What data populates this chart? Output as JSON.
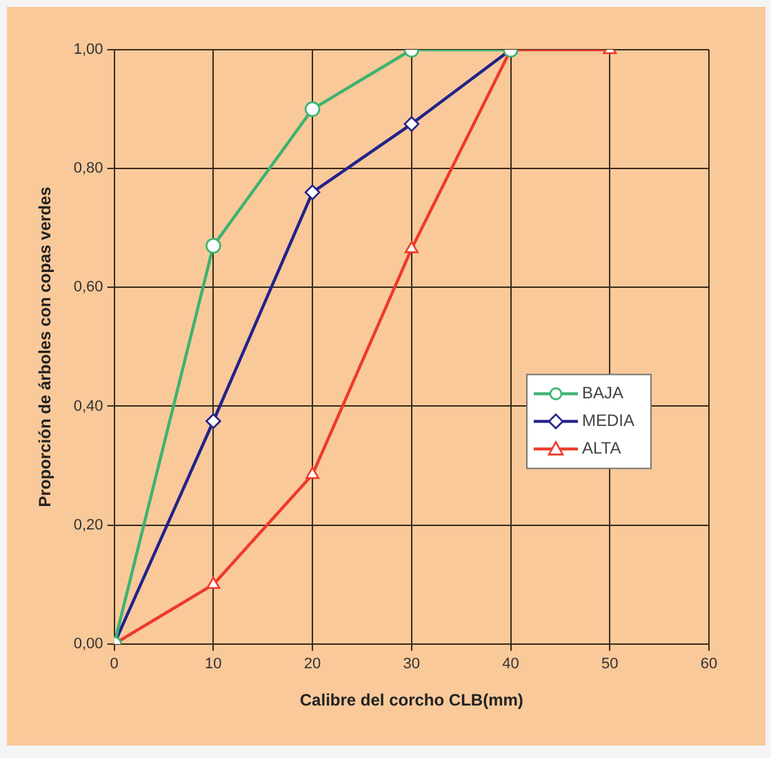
{
  "chart_data": {
    "type": "line",
    "xlabel": "Calibre del corcho CLB(mm)",
    "ylabel": "Proporción de árboles con copas verdes",
    "xlim": [
      0,
      60
    ],
    "xticks": [
      0,
      10,
      20,
      30,
      40,
      50,
      60
    ],
    "ylim": [
      0,
      1
    ],
    "yticks": [
      {
        "value": 0,
        "label": "0,00"
      },
      {
        "value": 0.2,
        "label": "0,20"
      },
      {
        "value": 0.4,
        "label": "0,40"
      },
      {
        "value": 0.6,
        "label": "0,60"
      },
      {
        "value": 0.8,
        "label": "0,80"
      },
      {
        "value": 1,
        "label": "1,00"
      }
    ],
    "grid": true,
    "legend": "right",
    "series": [
      {
        "name": "BAJA",
        "color": "#3cb371",
        "marker": "circle",
        "x": [
          0,
          10,
          20,
          30,
          40
        ],
        "values": [
          0,
          0.67,
          0.9,
          1,
          1
        ]
      },
      {
        "name": "MEDIA",
        "color": "#22228a",
        "marker": "diamond",
        "x": [
          0,
          10,
          20,
          30,
          40
        ],
        "values": [
          0,
          0.375,
          0.76,
          0.875,
          1
        ]
      },
      {
        "name": "ALTA",
        "color": "#ee3a2a",
        "marker": "triangle",
        "x": [
          0,
          10,
          20,
          30,
          40,
          50
        ],
        "values": [
          0,
          0.1,
          0.285,
          0.665,
          1,
          1
        ]
      }
    ]
  }
}
